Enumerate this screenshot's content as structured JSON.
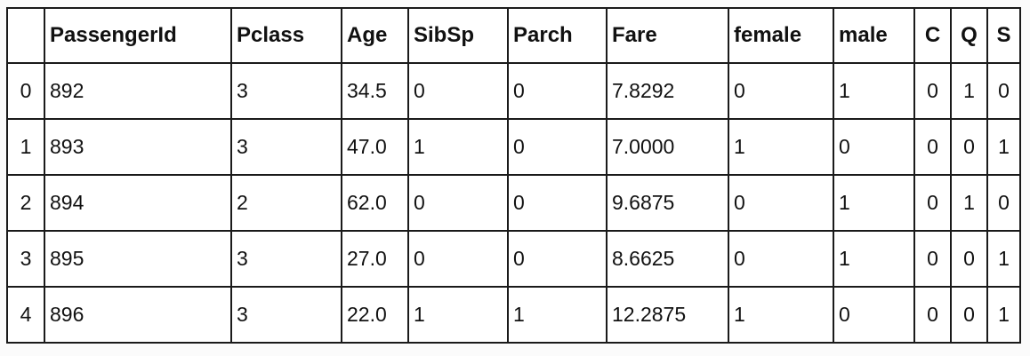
{
  "table": {
    "columns": [
      "",
      "PassengerId",
      "Pclass",
      "Age",
      "SibSp",
      "Parch",
      "Fare",
      "female",
      "male",
      "C",
      "Q",
      "S"
    ],
    "rows": [
      [
        "0",
        "892",
        "3",
        "34.5",
        "0",
        "0",
        "7.8292",
        "0",
        "1",
        "0",
        "1",
        "0"
      ],
      [
        "1",
        "893",
        "3",
        "47.0",
        "1",
        "0",
        "7.0000",
        "1",
        "0",
        "0",
        "0",
        "1"
      ],
      [
        "2",
        "894",
        "2",
        "62.0",
        "0",
        "0",
        "9.6875",
        "0",
        "1",
        "0",
        "1",
        "0"
      ],
      [
        "3",
        "895",
        "3",
        "27.0",
        "0",
        "0",
        "8.6625",
        "0",
        "1",
        "0",
        "0",
        "1"
      ],
      [
        "4",
        "896",
        "3",
        "22.0",
        "1",
        "1",
        "12.2875",
        "1",
        "0",
        "0",
        "0",
        "1"
      ]
    ]
  }
}
